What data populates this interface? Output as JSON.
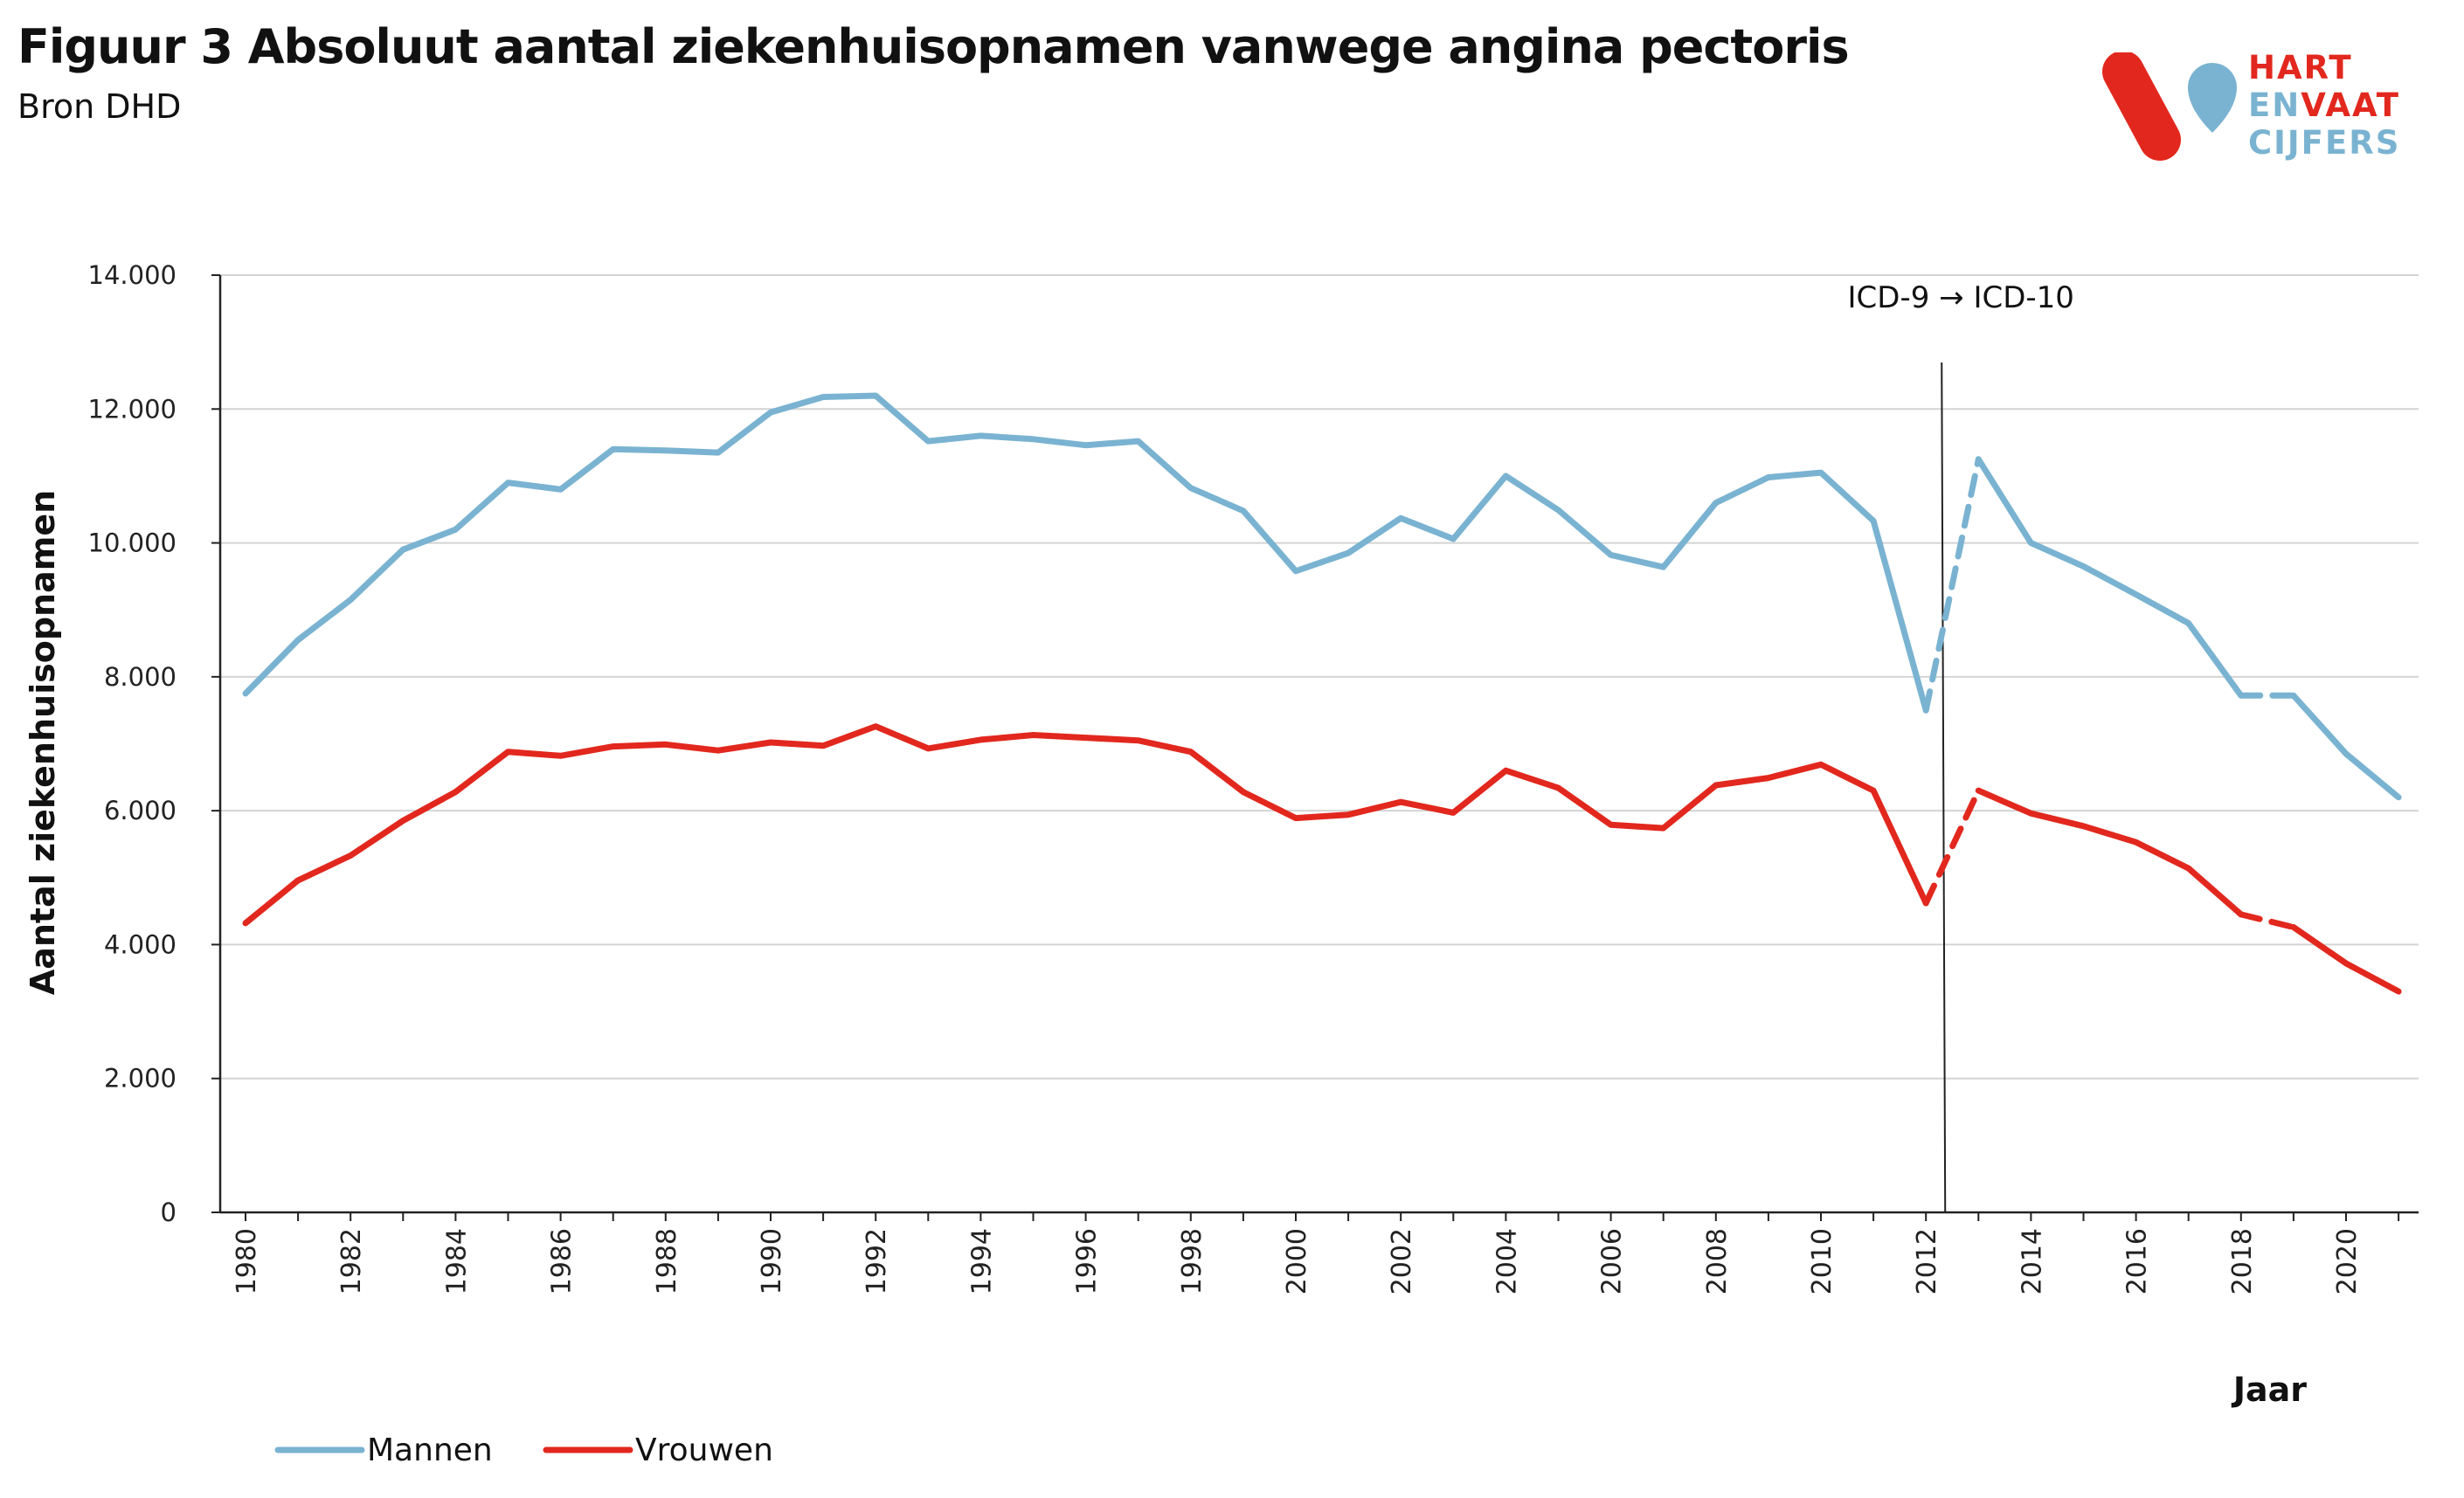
{
  "header": {
    "title": "Figuur 3 Absoluut aantal ziekenhuisopnamen vanwege angina pectoris",
    "subtitle": "Bron DHD"
  },
  "logo": {
    "line1": [
      {
        "text": "HART",
        "color": "#e2281e"
      }
    ],
    "line2": [
      {
        "text": "EN",
        "color": "#7ab3d1"
      },
      {
        "text": "VAAT",
        "color": "#e2281e"
      }
    ],
    "line3": [
      {
        "text": "CIJFERS",
        "color": "#7ab3d1"
      }
    ]
  },
  "chart_data": {
    "type": "line",
    "title": "",
    "xlabel": "Jaar",
    "ylabel": "Aantal ziekenhuisopnamen",
    "ylim": [
      0,
      14000
    ],
    "yticks": [
      0,
      2000,
      4000,
      6000,
      8000,
      10000,
      12000,
      14000
    ],
    "ytick_labels": [
      "0",
      "2.000",
      "4.000",
      "6.000",
      "8.000",
      "10.000",
      "12.000",
      "14.000"
    ],
    "xtick_labels": [
      "1980",
      "1982",
      "1984",
      "1986",
      "1988",
      "1990",
      "1992",
      "1994",
      "1996",
      "1998",
      "2000",
      "2002",
      "2004",
      "2006",
      "2008",
      "2010",
      "2012",
      "2014",
      "2016",
      "2018",
      "2020"
    ],
    "grid": true,
    "legend_position": "bottom-left",
    "x": [
      1980,
      1981,
      1982,
      1983,
      1984,
      1985,
      1986,
      1987,
      1988,
      1989,
      1990,
      1991,
      1992,
      1993,
      1994,
      1995,
      1996,
      1997,
      1998,
      1999,
      2000,
      2001,
      2002,
      2003,
      2004,
      2005,
      2006,
      2007,
      2008,
      2009,
      2010,
      2011,
      2012,
      2013,
      2014,
      2015,
      2016,
      2017,
      2018,
      2019,
      2020,
      2021
    ],
    "series": [
      {
        "name": "Mannen",
        "color": "#7ab3d1",
        "values": [
          7750,
          8550,
          9150,
          9900,
          10200,
          10900,
          10800,
          11400,
          11380,
          11350,
          11950,
          12180,
          12200,
          11520,
          11600,
          11550,
          11460,
          11520,
          10820,
          10480,
          9580,
          9850,
          10370,
          10060,
          11000,
          10490,
          9820,
          9640,
          10600,
          10980,
          11050,
          10330,
          7500,
          11250,
          10000,
          9650,
          9230,
          8800,
          7720,
          7720,
          6850,
          6200
        ],
        "dashed_segments": [
          [
            2012,
            2013
          ],
          [
            2018,
            2019
          ]
        ]
      },
      {
        "name": "Vrouwen",
        "color": "#e2281e",
        "values": [
          4320,
          4960,
          5330,
          5850,
          6280,
          6880,
          6820,
          6960,
          6990,
          6900,
          7020,
          6970,
          7260,
          6930,
          7060,
          7130,
          7090,
          7050,
          6880,
          6280,
          5890,
          5940,
          6130,
          5970,
          6600,
          6340,
          5790,
          5740,
          6380,
          6490,
          6690,
          6300,
          4620,
          6300,
          5960,
          5770,
          5530,
          5140,
          4450,
          4260,
          3720,
          3300
        ],
        "dashed_segments": [
          [
            2012,
            2013
          ],
          [
            2018,
            2019
          ]
        ]
      }
    ],
    "annotations": [
      {
        "type": "vline",
        "x": 2012.3,
        "text": "ICD-9 → ICD-10"
      }
    ]
  }
}
